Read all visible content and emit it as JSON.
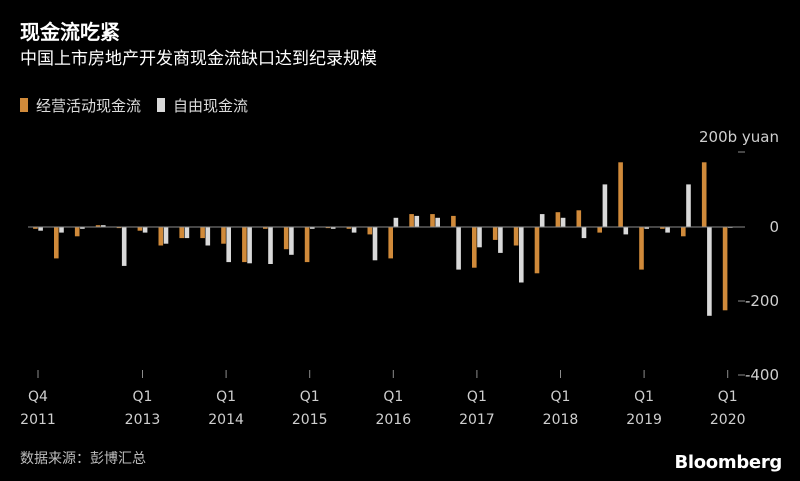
{
  "chart_data": {
    "type": "bar",
    "title": "现金流吃紧",
    "subtitle": "中国上市房地产开发商现金流缺口达到纪录规模",
    "unit_label": "200b yuan",
    "y_ticks": [
      0,
      -200,
      -400
    ],
    "y_tick_labels": [
      "0",
      "-200",
      "-400"
    ],
    "ylim": [
      -430,
      200
    ],
    "grid": false,
    "legend_position": "top-left",
    "x_tick_labels": [
      {
        "index": 0,
        "quarter": "Q4",
        "year": "2011"
      },
      {
        "index": 5,
        "quarter": "Q1",
        "year": "2013"
      },
      {
        "index": 9,
        "quarter": "Q1",
        "year": "2014"
      },
      {
        "index": 13,
        "quarter": "Q1",
        "year": "2015"
      },
      {
        "index": 17,
        "quarter": "Q1",
        "year": "2016"
      },
      {
        "index": 21,
        "quarter": "Q1",
        "year": "2017"
      },
      {
        "index": 25,
        "quarter": "Q1",
        "year": "2018"
      },
      {
        "index": 29,
        "quarter": "Q1",
        "year": "2019"
      },
      {
        "index": 33,
        "quarter": "Q1",
        "year": "2020"
      }
    ],
    "categories": [
      "2011Q4",
      "2012Q1",
      "2012Q2",
      "2012Q3",
      "2012Q4",
      "2013Q1",
      "2013Q2",
      "2013Q3",
      "2013Q4",
      "2014Q1",
      "2014Q2",
      "2014Q3",
      "2014Q4",
      "2015Q1",
      "2015Q2",
      "2015Q3",
      "2015Q4",
      "2016Q1",
      "2016Q2",
      "2016Q3",
      "2016Q4",
      "2017Q1",
      "2017Q2",
      "2017Q3",
      "2017Q4",
      "2018Q1",
      "2018Q2",
      "2018Q3",
      "2018Q4",
      "2019Q1",
      "2019Q2",
      "2019Q3",
      "2019Q4",
      "2020Q1"
    ],
    "series": [
      {
        "name": "经营活动现金流",
        "color": "#d08a3a",
        "values": [
          -5,
          -85,
          -25,
          5,
          -3,
          -10,
          -50,
          -30,
          -30,
          -45,
          -95,
          -5,
          -60,
          -95,
          -3,
          -5,
          -20,
          -85,
          35,
          35,
          30,
          -110,
          -35,
          -50,
          -125,
          40,
          45,
          -15,
          175,
          -115,
          -5,
          -25,
          175,
          -225
        ]
      },
      {
        "name": "自由现金流",
        "color": "#d9d9d9",
        "values": [
          -10,
          -15,
          -5,
          5,
          -105,
          -15,
          -45,
          -30,
          -50,
          -95,
          -98,
          -100,
          -75,
          -5,
          -5,
          -15,
          -90,
          25,
          30,
          25,
          -115,
          -55,
          -70,
          -150,
          35,
          25,
          -30,
          115,
          -20,
          -5,
          -15,
          115,
          -240,
          0
        ]
      }
    ],
    "source": "数据来源：彭博汇总",
    "brand": "Bloomberg"
  }
}
